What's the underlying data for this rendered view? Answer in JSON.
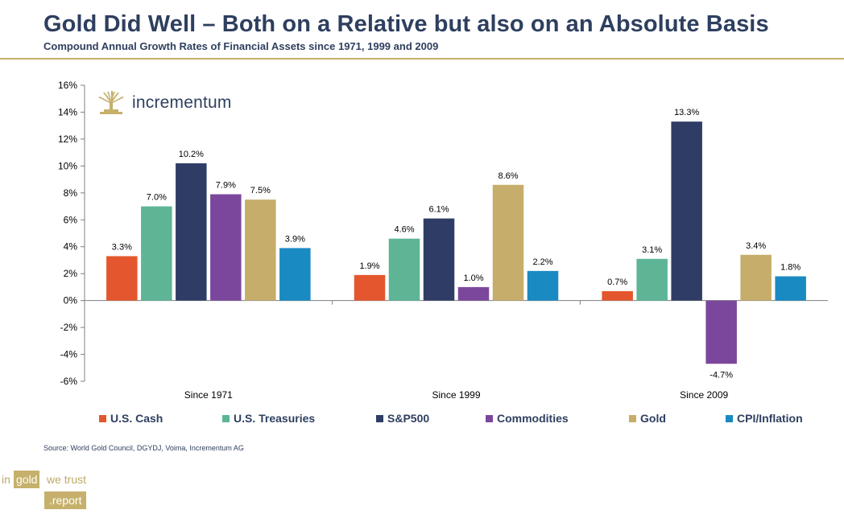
{
  "header": {
    "title": "Gold Did Well – Both on a Relative but also on an Absolute Basis",
    "subtitle": "Compound Annual Growth Rates of Financial Assets since 1971, 1999 and 2009"
  },
  "brand": {
    "name": "incrementum",
    "icon": "tree-logo-icon"
  },
  "source": "Source: World Gold Council, DGYDJ, Voima, Incrementum AG",
  "footer_logo": {
    "in": "in",
    "gold": "gold",
    "we_trust": "we trust",
    "report": ".report"
  },
  "colors": {
    "title": "#2e3f5f",
    "accent_gold": "#c9b068"
  },
  "chart_data": {
    "type": "bar",
    "title": "Compound Annual Growth Rates of Financial Assets since 1971, 1999 and 2009",
    "categories": [
      "Since 1971",
      "Since 1999",
      "Since 2009"
    ],
    "ylim": [
      -6,
      16
    ],
    "yticks": [
      -6,
      -4,
      -2,
      0,
      2,
      4,
      6,
      8,
      10,
      12,
      14,
      16
    ],
    "ytick_labels": [
      "-6%",
      "-4%",
      "-2%",
      "0%",
      "2%",
      "4%",
      "6%",
      "8%",
      "10%",
      "12%",
      "14%",
      "16%"
    ],
    "unit": "%",
    "legend_position": "bottom",
    "series": [
      {
        "name": "U.S. Cash",
        "color": "#e4572e",
        "values": [
          3.3,
          1.9,
          0.7
        ],
        "labels": [
          "3.3%",
          "1.9%",
          "0.7%"
        ]
      },
      {
        "name": "U.S. Treasuries",
        "color": "#5db596",
        "values": [
          7.0,
          4.6,
          3.1
        ],
        "labels": [
          "7.0%",
          "4.6%",
          "3.1%"
        ]
      },
      {
        "name": "S&P500",
        "color": "#2f3d66",
        "values": [
          10.2,
          6.1,
          13.3
        ],
        "labels": [
          "10.2%",
          "6.1%",
          "13.3%"
        ]
      },
      {
        "name": "Commodities",
        "color": "#7b479d",
        "values": [
          7.9,
          1.0,
          -4.7
        ],
        "labels": [
          "7.9%",
          "1.0%",
          "-4.7%"
        ]
      },
      {
        "name": "Gold",
        "color": "#c7ad6b",
        "values": [
          7.5,
          8.6,
          3.4
        ],
        "labels": [
          "7.5%",
          "8.6%",
          "3.4%"
        ]
      },
      {
        "name": "CPI/Inflation",
        "color": "#1a8ac2",
        "values": [
          3.9,
          2.2,
          1.8
        ],
        "labels": [
          "3.9%",
          "2.2%",
          "1.8%"
        ]
      }
    ]
  }
}
